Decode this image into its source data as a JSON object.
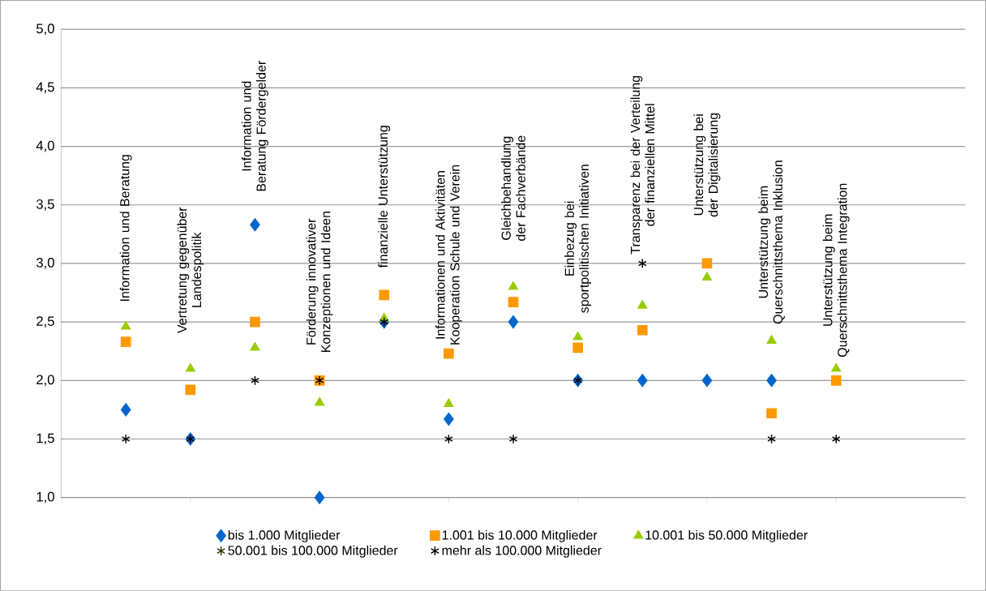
{
  "chart_data": {
    "type": "scatter",
    "categories": [
      "Information und Beratung",
      "Vertretung gegenüber Landespolitik",
      "Information und Beratung Fördergelder",
      "Förderung innovativer Konzeptionen und Ideen",
      "finanzielle Unterstützung",
      "Informationen und Aktivitäten Kooperation Schule und Verein",
      "Gleichbehandlung der Fachverbände",
      "Einbezug bei sportpolitischen Initiativen",
      "Transparenz bei der Verteilung der finanziellen Mittel",
      "Unterstützung bei der Digitalisierung",
      "Unterstützung beim Querschnittsthema Inklusion",
      "Unterstützung beim Querschnittsthema Integration"
    ],
    "series": [
      {
        "name": "bis 1.000 Mitglieder",
        "color": "#0066cc",
        "marker": "diamond",
        "values": [
          1.75,
          1.5,
          3.33,
          1.0,
          2.5,
          1.67,
          2.5,
          2.0,
          2.0,
          2.0,
          2.0,
          null
        ]
      },
      {
        "name": "1.001 bis 10.000 Mitglieder",
        "color": "#ff9900",
        "marker": "square",
        "values": [
          2.33,
          1.92,
          2.5,
          2.0,
          2.73,
          2.23,
          2.67,
          2.28,
          2.43,
          3.0,
          1.72,
          2.0
        ]
      },
      {
        "name": "10.001 bis 50.000 Mitglieder",
        "color": "#99cc00",
        "marker": "triangle",
        "values": [
          2.46,
          2.1,
          2.28,
          1.81,
          2.53,
          1.8,
          2.8,
          2.37,
          2.64,
          2.88,
          2.34,
          2.1
        ]
      },
      {
        "name": "50.001 bis 100.000 Mitglieder",
        "color": "#333300",
        "marker": "cross",
        "values": [
          null,
          null,
          null,
          null,
          null,
          null,
          null,
          null,
          null,
          null,
          null,
          null
        ]
      },
      {
        "name": "mehr als 100.000 Mitglieder",
        "color": "#000000",
        "marker": "cross",
        "values": [
          1.5,
          1.5,
          2.0,
          2.0,
          2.5,
          1.5,
          1.5,
          2.0,
          3.0,
          null,
          1.5,
          1.5
        ]
      }
    ],
    "ylim": [
      1.0,
      5.0
    ],
    "yticks": [
      {
        "value": 1.0,
        "label": "1,0"
      },
      {
        "value": 1.5,
        "label": "1,5"
      },
      {
        "value": 2.0,
        "label": "2,0"
      },
      {
        "value": 2.5,
        "label": "2,5"
      },
      {
        "value": 3.0,
        "label": "3,0"
      },
      {
        "value": 3.5,
        "label": "3,5"
      },
      {
        "value": 4.0,
        "label": "4,0"
      },
      {
        "value": 4.5,
        "label": "4,5"
      },
      {
        "value": 5.0,
        "label": "5,0"
      }
    ],
    "grid": "y",
    "legend": "bottom"
  }
}
